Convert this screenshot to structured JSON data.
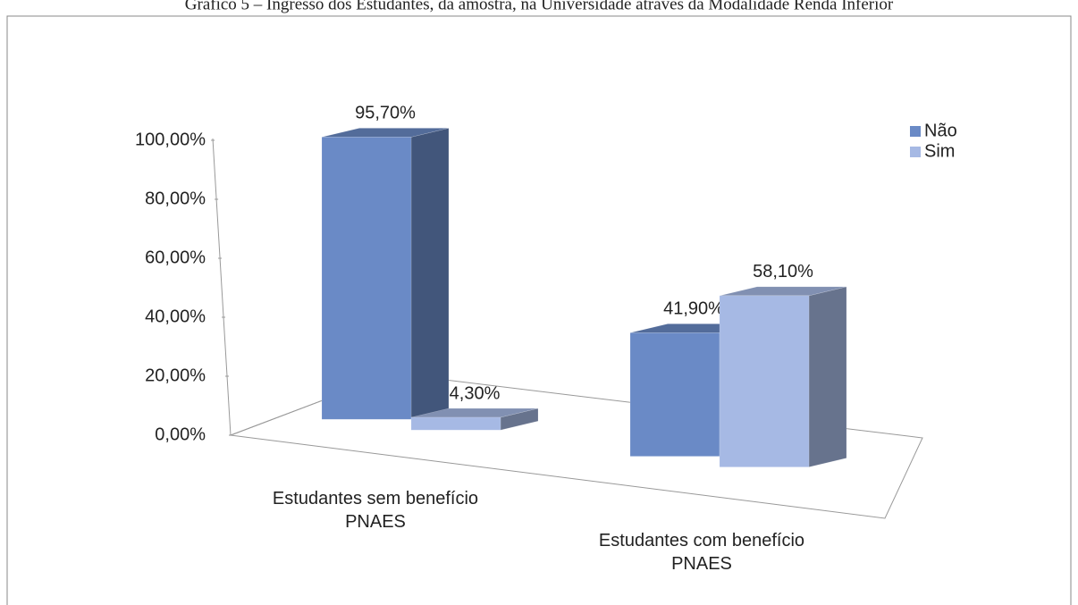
{
  "chart_data": {
    "type": "bar3d",
    "title": "Gráfico 5 – Ingresso dos Estudantes, da amostra, na Universidade através da Modalidade Renda Inferior",
    "categories": [
      "Estudantes sem benefício PNAES",
      "Estudantes com benefício PNAES"
    ],
    "series": [
      {
        "name": "Não",
        "color": "#6a8ac6",
        "values": [
          95.7,
          41.9
        ],
        "value_labels": [
          "95,70%",
          "41,90%"
        ]
      },
      {
        "name": "Sim",
        "color": "#a6b9e4",
        "values": [
          4.3,
          58.1
        ],
        "value_labels": [
          "4,30%",
          "58,10%"
        ]
      }
    ],
    "ylim": [
      0,
      100
    ],
    "yticks": [
      {
        "value": 0,
        "label": "0,00%"
      },
      {
        "value": 20,
        "label": "20,00%"
      },
      {
        "value": 40,
        "label": "40,00%"
      },
      {
        "value": 60,
        "label": "60,00%"
      },
      {
        "value": 80,
        "label": "80,00%"
      },
      {
        "value": 100,
        "label": "100,00%"
      }
    ],
    "legend": "top-right"
  }
}
